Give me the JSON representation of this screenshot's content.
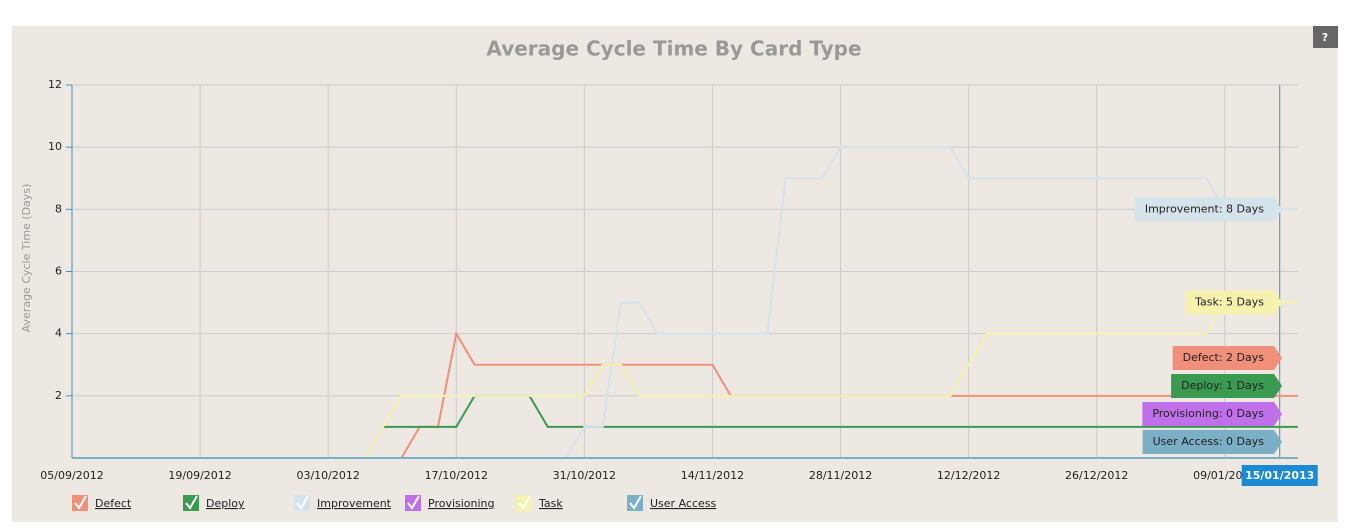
{
  "chart_data": {
    "type": "line",
    "title": "Average Cycle Time By Card Type",
    "y_label": "Average Cycle Time (Days)",
    "help": "?",
    "x": [
      "05/09/2012",
      "07/10/2012",
      "09/10/2012",
      "11/10/2012",
      "13/10/2012",
      "15/10/2012",
      "17/10/2012",
      "19/10/2012",
      "25/10/2012",
      "27/10/2012",
      "29/10/2012",
      "31/10/2012",
      "02/11/2012",
      "04/11/2012",
      "06/11/2012",
      "08/11/2012",
      "14/11/2012",
      "16/11/2012",
      "20/11/2012",
      "22/11/2012",
      "26/11/2012",
      "28/11/2012",
      "10/12/2012",
      "12/12/2012",
      "14/12/2012",
      "07/01/2013",
      "09/01/2013",
      "15/01/2013",
      "17/01/2013"
    ],
    "series": [
      {
        "name": "Defect",
        "color": "#f0907a",
        "label": "Defect: 2 Days",
        "values": [
          null,
          null,
          null,
          0,
          1,
          1,
          4,
          3,
          3,
          3,
          3,
          3,
          3,
          3,
          3,
          3,
          3,
          2,
          2,
          2,
          2,
          2,
          2,
          2,
          2,
          2,
          2,
          2,
          2
        ]
      },
      {
        "name": "Deploy",
        "color": "#3a9a50",
        "label": "Deploy: 1 Days",
        "values": [
          null,
          null,
          1,
          1,
          1,
          1,
          1,
          2,
          2,
          1,
          1,
          1,
          1,
          1,
          1,
          1,
          1,
          1,
          1,
          1,
          1,
          1,
          1,
          1,
          1,
          1,
          1,
          1,
          1
        ]
      },
      {
        "name": "Improvement",
        "color": "#d5e3ea",
        "label": "Improvement: 8 Days",
        "values": [
          0,
          0,
          0,
          0,
          0,
          0,
          0,
          0,
          0,
          0,
          0,
          1,
          1,
          5,
          5,
          4,
          4,
          4,
          4,
          9,
          9,
          10,
          10,
          9,
          9,
          9,
          8,
          8,
          8
        ]
      },
      {
        "name": "Provisioning",
        "color": "#c070e8",
        "label": "Provisioning: 0 Days",
        "values": [
          0,
          0,
          0,
          0,
          0,
          0,
          0,
          0,
          0,
          0,
          0,
          0,
          0,
          0,
          0,
          0,
          0,
          0,
          0,
          0,
          0,
          0,
          0,
          0,
          0,
          0,
          0,
          0,
          0
        ]
      },
      {
        "name": "Task",
        "color": "#f5f2b0",
        "label": "Task: 5 Days",
        "values": [
          null,
          0,
          1,
          2,
          2,
          2,
          2,
          2,
          2,
          2,
          2,
          2,
          3,
          3,
          2,
          2,
          2,
          2,
          2,
          2,
          2,
          2,
          2,
          3,
          4,
          4,
          5,
          5,
          5
        ]
      },
      {
        "name": "User Access",
        "color": "#7aafc6",
        "label": "User Access: 0 Days",
        "values": [
          0,
          0,
          0,
          0,
          0,
          0,
          0,
          0,
          0,
          0,
          0,
          0,
          0,
          0,
          0,
          0,
          0,
          0,
          0,
          0,
          0,
          0,
          0,
          0,
          0,
          0,
          0,
          0,
          0
        ]
      }
    ],
    "xlim": [
      "05/09/2012",
      "17/01/2013"
    ],
    "xticks": [
      "05/09/2012",
      "19/09/2012",
      "03/10/2012",
      "17/10/2012",
      "31/10/2012",
      "14/11/2012",
      "28/11/2012",
      "12/12/2012",
      "26/12/2012",
      "09/01/2013"
    ],
    "x_marker": "15/01/2013",
    "ylim": [
      0,
      12
    ],
    "yticks": [
      2,
      4,
      6,
      8,
      10,
      12
    ],
    "grid": true
  }
}
